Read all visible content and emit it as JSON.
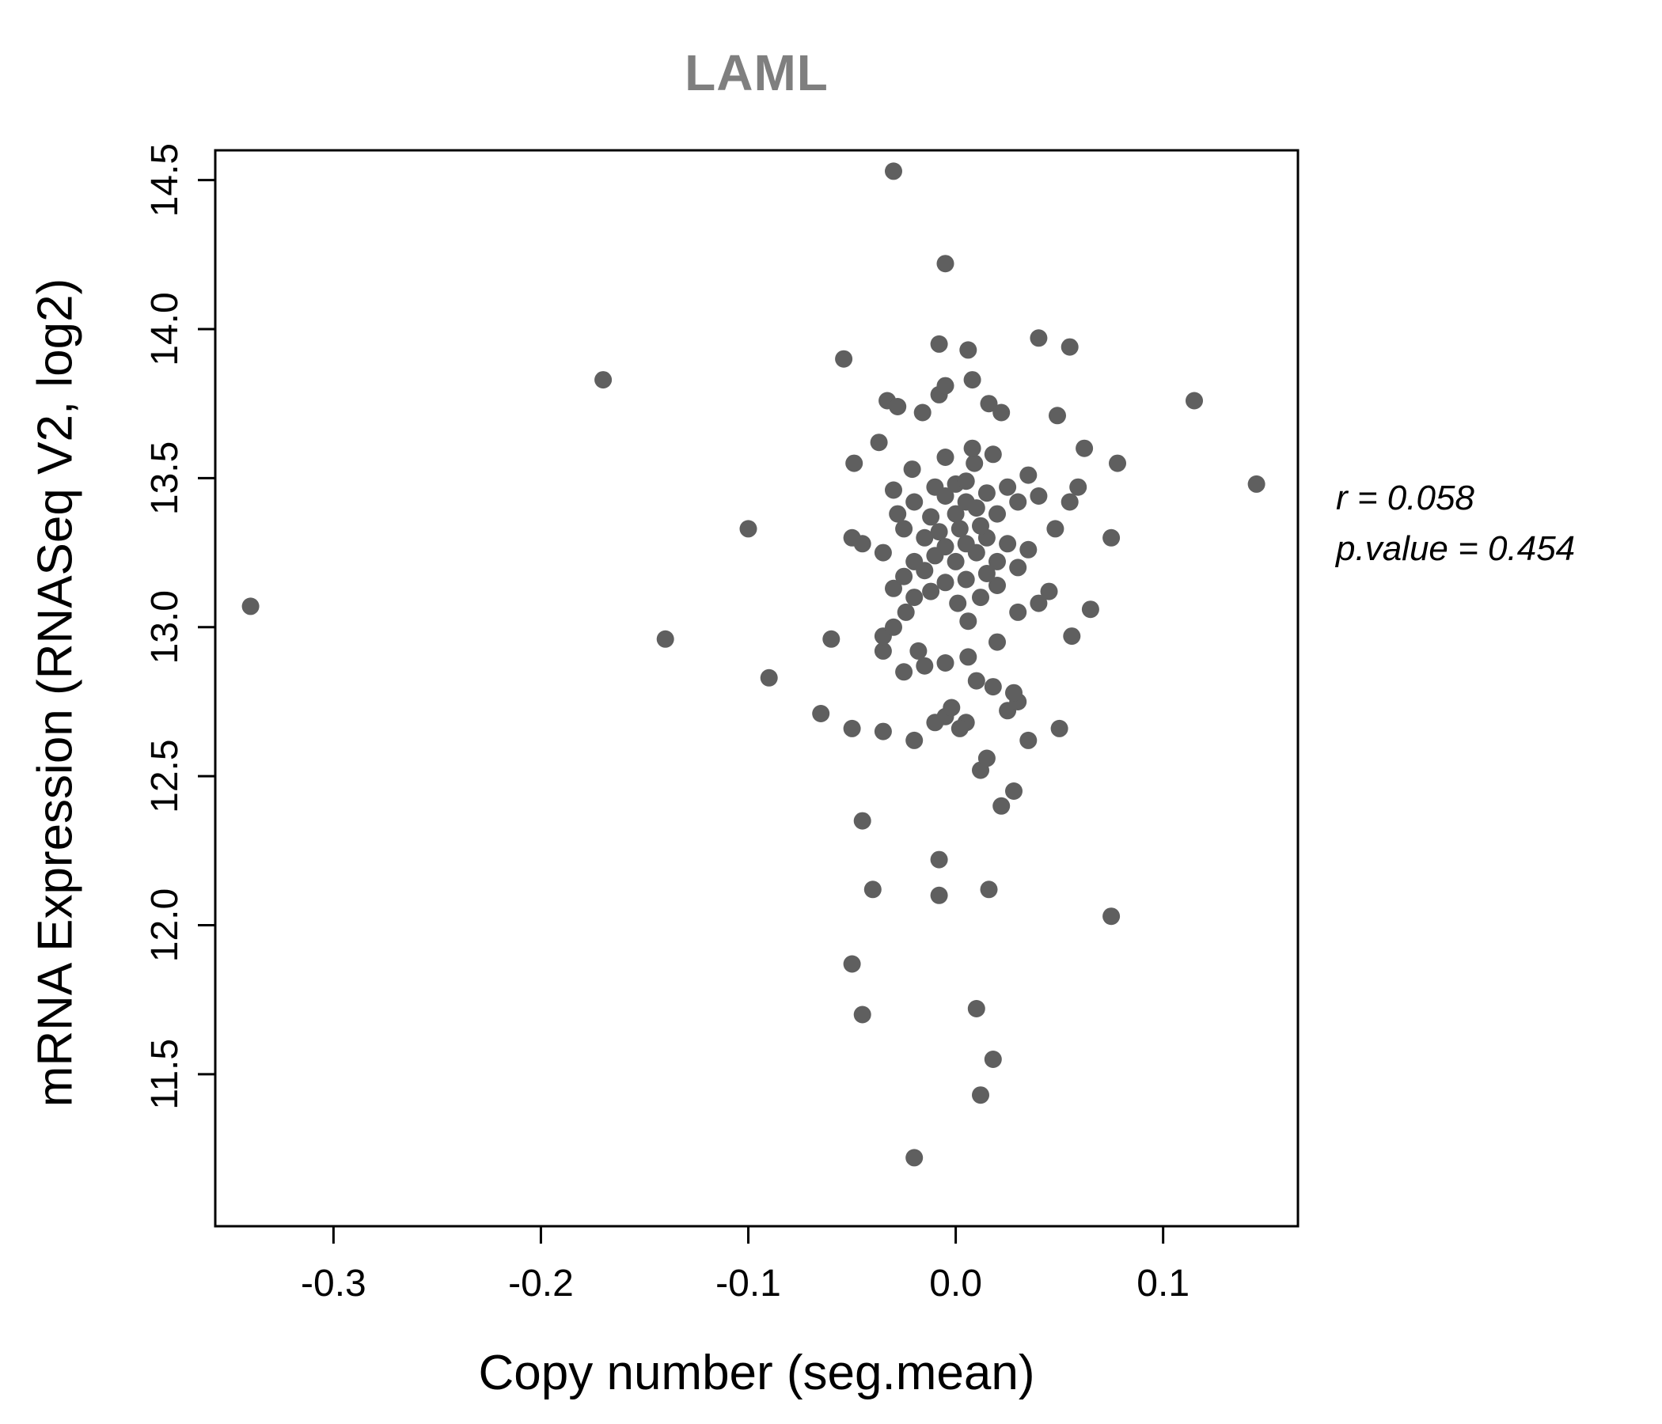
{
  "title": "LAML",
  "annotation": {
    "line1": "r = 0.058",
    "line2": "p.value = 0.454"
  },
  "chart_data": {
    "type": "scatter",
    "title": "LAML",
    "xlabel": "Copy number (seg.mean)",
    "ylabel": "mRNA Expression (RNASeq V2, log2)",
    "xlim": [
      -0.357,
      0.165
    ],
    "ylim": [
      10.99,
      14.6
    ],
    "xticks": [
      -0.3,
      -0.2,
      -0.1,
      0.0,
      0.1
    ],
    "yticks": [
      11.5,
      12.0,
      12.5,
      13.0,
      13.5,
      14.0,
      14.5
    ],
    "grid": false,
    "legend": "none",
    "point_color": "#5f5f5f",
    "box_color": "#000000",
    "title_color": "#7f7f7f",
    "stats": {
      "r": 0.058,
      "p_value": 0.454
    },
    "points": [
      [
        -0.34,
        13.07
      ],
      [
        -0.17,
        13.83
      ],
      [
        -0.14,
        12.96
      ],
      [
        -0.1,
        13.33
      ],
      [
        -0.09,
        12.83
      ],
      [
        -0.065,
        12.71
      ],
      [
        -0.03,
        14.53
      ],
      [
        -0.005,
        14.22
      ],
      [
        0.04,
        13.97
      ],
      [
        0.055,
        13.94
      ],
      [
        0.115,
        13.76
      ],
      [
        0.145,
        13.48
      ],
      [
        0.075,
        12.03
      ],
      [
        -0.02,
        11.22
      ],
      [
        0.012,
        11.43
      ],
      [
        0.018,
        11.55
      ],
      [
        -0.045,
        11.7
      ],
      [
        0.01,
        11.72
      ],
      [
        -0.05,
        11.87
      ],
      [
        -0.04,
        12.12
      ],
      [
        -0.008,
        12.1
      ],
      [
        0.016,
        12.12
      ],
      [
        -0.008,
        12.22
      ],
      [
        -0.045,
        12.35
      ],
      [
        0.022,
        12.4
      ],
      [
        0.028,
        12.45
      ],
      [
        0.012,
        12.52
      ],
      [
        0.015,
        12.56
      ],
      [
        -0.02,
        12.62
      ],
      [
        -0.035,
        12.65
      ],
      [
        0.035,
        12.62
      ],
      [
        -0.05,
        12.66
      ],
      [
        0.005,
        12.68
      ],
      [
        -0.005,
        12.7
      ],
      [
        0.05,
        12.66
      ],
      [
        0.025,
        12.72
      ],
      [
        -0.002,
        12.73
      ],
      [
        0.002,
        12.66
      ],
      [
        -0.01,
        12.68
      ],
      [
        0.03,
        12.75
      ],
      [
        -0.025,
        12.85
      ],
      [
        0.01,
        12.82
      ],
      [
        0.018,
        12.8
      ],
      [
        -0.015,
        12.87
      ],
      [
        0.028,
        12.78
      ],
      [
        -0.005,
        12.88
      ],
      [
        -0.035,
        12.92
      ],
      [
        -0.018,
        12.92
      ],
      [
        0.006,
        12.9
      ],
      [
        -0.035,
        12.97
      ],
      [
        0.02,
        12.95
      ],
      [
        -0.06,
        12.96
      ],
      [
        -0.03,
        13.0
      ],
      [
        0.006,
        13.02
      ],
      [
        0.03,
        13.05
      ],
      [
        -0.024,
        13.05
      ],
      [
        0.056,
        12.97
      ],
      [
        0.04,
        13.08
      ],
      [
        -0.02,
        13.1
      ],
      [
        0.001,
        13.08
      ],
      [
        0.065,
        13.06
      ],
      [
        -0.012,
        13.12
      ],
      [
        0.012,
        13.1
      ],
      [
        -0.03,
        13.13
      ],
      [
        0.02,
        13.14
      ],
      [
        -0.005,
        13.15
      ],
      [
        0.005,
        13.16
      ],
      [
        0.045,
        13.12
      ],
      [
        -0.025,
        13.17
      ],
      [
        0.015,
        13.18
      ],
      [
        -0.015,
        13.19
      ],
      [
        0.03,
        13.2
      ],
      [
        -0.045,
        13.28
      ],
      [
        -0.05,
        13.3
      ],
      [
        -0.035,
        13.25
      ],
      [
        -0.02,
        13.22
      ],
      [
        -0.01,
        13.24
      ],
      [
        0.0,
        13.22
      ],
      [
        0.01,
        13.25
      ],
      [
        0.02,
        13.22
      ],
      [
        -0.005,
        13.27
      ],
      [
        0.005,
        13.28
      ],
      [
        -0.015,
        13.3
      ],
      [
        0.015,
        13.3
      ],
      [
        0.025,
        13.28
      ],
      [
        0.035,
        13.26
      ],
      [
        -0.008,
        13.32
      ],
      [
        0.002,
        13.33
      ],
      [
        -0.025,
        13.33
      ],
      [
        0.012,
        13.34
      ],
      [
        0.048,
        13.33
      ],
      [
        0.075,
        13.3
      ],
      [
        -0.028,
        13.38
      ],
      [
        -0.012,
        13.37
      ],
      [
        0.0,
        13.38
      ],
      [
        0.01,
        13.4
      ],
      [
        -0.02,
        13.42
      ],
      [
        0.02,
        13.38
      ],
      [
        0.03,
        13.42
      ],
      [
        -0.005,
        13.44
      ],
      [
        0.005,
        13.42
      ],
      [
        0.015,
        13.45
      ],
      [
        -0.03,
        13.46
      ],
      [
        0.025,
        13.47
      ],
      [
        0.04,
        13.44
      ],
      [
        0.055,
        13.42
      ],
      [
        -0.01,
        13.47
      ],
      [
        0.0,
        13.48
      ],
      [
        0.035,
        13.51
      ],
      [
        -0.049,
        13.55
      ],
      [
        -0.021,
        13.53
      ],
      [
        0.005,
        13.49
      ],
      [
        0.009,
        13.55
      ],
      [
        0.062,
        13.6
      ],
      [
        0.078,
        13.55
      ],
      [
        0.059,
        13.47
      ],
      [
        -0.037,
        13.62
      ],
      [
        0.008,
        13.6
      ],
      [
        -0.005,
        13.57
      ],
      [
        0.018,
        13.58
      ],
      [
        -0.054,
        13.9
      ],
      [
        -0.033,
        13.76
      ],
      [
        -0.028,
        13.74
      ],
      [
        -0.016,
        13.72
      ],
      [
        -0.008,
        13.78
      ],
      [
        -0.005,
        13.81
      ],
      [
        -0.008,
        13.95
      ],
      [
        0.006,
        13.93
      ],
      [
        0.008,
        13.83
      ],
      [
        0.016,
        13.75
      ],
      [
        0.022,
        13.72
      ],
      [
        0.049,
        13.71
      ]
    ]
  }
}
